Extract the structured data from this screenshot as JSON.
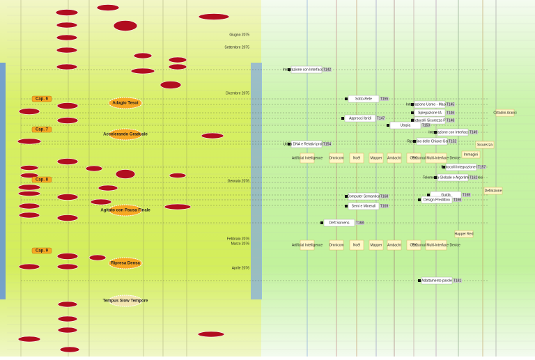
{
  "timeline": [
    "Giugno 2075",
    "Settembre 2075",
    "Dicembre 2075",
    "Gennaio 2076",
    "Febbraio 2076",
    "Marzo 2076",
    "Aprile 2076"
  ],
  "chapters": [
    "Cap. 6",
    "Cap. 7",
    "Cap. 8",
    "Cap. 9"
  ],
  "movements": [
    "Adagio Tesoi",
    "Accelerando Graduale",
    "Agitato con Pausa Finale",
    "Ripresa Densa",
    "Tempus Slow Tempore"
  ],
  "tasks": [
    {
      "label": "Integrazione con Interfacce PB",
      "code": "T142"
    },
    {
      "label": "Sotto-Rete",
      "code": "T155"
    },
    {
      "label": "Integrazione Uomo - Macchina",
      "code": "T145"
    },
    {
      "label": "Spiegazione IA",
      "code": "T146"
    },
    {
      "label": "Approcci Ibridi",
      "code": "T147"
    },
    {
      "label": "Protocolli Sicurezza PB",
      "code": "T148"
    },
    {
      "label": "Utopia",
      "code": "T150"
    },
    {
      "label": "Integrazione con Interfaccia PB",
      "code": "T149"
    },
    {
      "label": "Ripristino delle Chiave Genetica",
      "code": "T152"
    },
    {
      "label": "Utilità DNA e Relativi problemi",
      "code": "T154"
    },
    {
      "label": "Protocolli Integrazione PB",
      "code": "T157"
    },
    {
      "label": "Telemetria Globale e Algoritmi Genetici",
      "code": "T162"
    },
    {
      "label": "Guida",
      "code": "T165"
    },
    {
      "label": "Design Predittivo",
      "code": "T166"
    },
    {
      "label": "Computer Semantica",
      "code": "T168"
    },
    {
      "label": "Semi e Minerali",
      "code": "T169"
    },
    {
      "label": "Deft Sorvens",
      "code": "T168"
    },
    {
      "label": "Adattamento parole",
      "code": "T181"
    }
  ],
  "columns": [
    "Artificial Intelligence",
    "Omnicom",
    "Noël",
    "Mapper",
    "Ambacht",
    "ODC",
    "Personal Multi-Interface Device"
  ],
  "side_notes": [
    "Immagini",
    "Sicurezza",
    "Definizione",
    "Cittadini Aranci",
    "Happer Red"
  ]
}
